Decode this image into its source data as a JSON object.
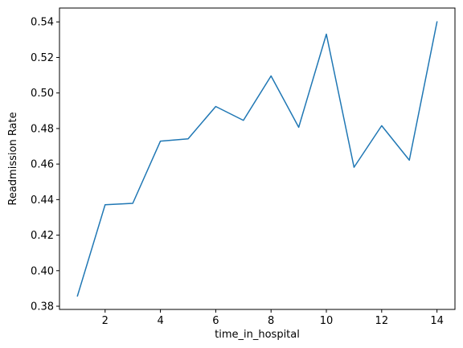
{
  "chart_data": {
    "type": "line",
    "title": "",
    "xlabel": "time_in_hospital",
    "ylabel": "Readmission Rate",
    "xlim": [
      0.35,
      14.65
    ],
    "ylim": [
      0.3782,
      0.5478
    ],
    "xticks": [
      2,
      4,
      6,
      8,
      10,
      12,
      14
    ],
    "yticks": [
      0.38,
      0.4,
      0.42,
      0.44,
      0.46,
      0.48,
      0.5,
      0.52,
      0.54
    ],
    "grid": false,
    "legend": "none",
    "line_color": "#1f77b4",
    "series": [
      {
        "x": [
          1,
          2,
          3,
          4,
          5,
          6,
          7,
          8,
          9,
          10,
          11,
          12,
          13,
          14
        ],
        "y": [
          0.3858,
          0.4371,
          0.4379,
          0.4729,
          0.4742,
          0.4924,
          0.4846,
          0.5096,
          0.4807,
          0.5331,
          0.4582,
          0.4816,
          0.4622,
          0.54
        ]
      }
    ]
  }
}
